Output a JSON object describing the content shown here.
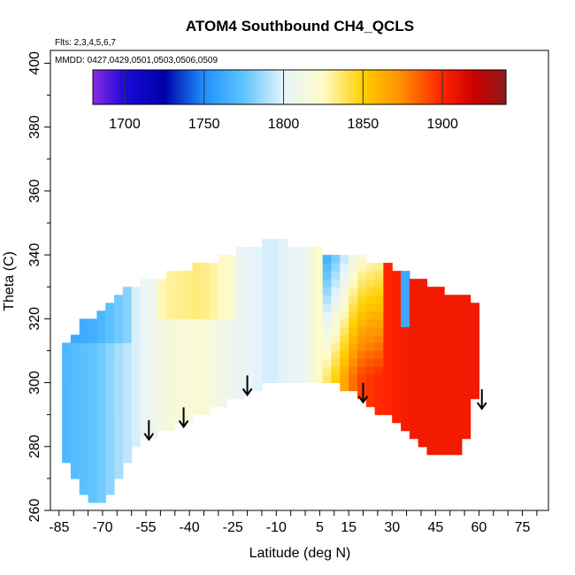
{
  "chart_data": {
    "type": "heatmap",
    "title": "ATOM4 Southbound CH4_QCLS",
    "annotations": [
      "Flts: 2,3,4,5,6,7",
      "MMDD: 0427,0429,0501,0503,0506,0509"
    ],
    "xlabel": "Latitude (deg N)",
    "ylabel": "Theta (C)",
    "xlim": [
      -88,
      84
    ],
    "ylim": [
      260,
      404
    ],
    "x_ticks": [
      -85,
      -70,
      -55,
      -40,
      -25,
      -10,
      5,
      15,
      30,
      45,
      60,
      75
    ],
    "x_tick_labels": [
      "-85",
      "-70",
      "-55",
      "-40",
      "-25",
      "-10",
      "5",
      "15",
      "30",
      "45",
      "60",
      "75"
    ],
    "y_ticks": [
      260,
      280,
      300,
      320,
      340,
      360,
      380,
      400
    ],
    "y_tick_labels": [
      "260",
      "280",
      "300",
      "320",
      "340",
      "360",
      "380",
      "400"
    ],
    "colorbar": {
      "range": [
        1680,
        1940
      ],
      "ticks": [
        1700,
        1750,
        1800,
        1850,
        1900
      ],
      "tick_labels": [
        "1700",
        "1750",
        "1800",
        "1850",
        "1900"
      ],
      "stops": [
        {
          "value": 1680,
          "color": "#8a2be2"
        },
        {
          "value": 1700,
          "color": "#1a0ad8"
        },
        {
          "value": 1725,
          "color": "#0000a8"
        },
        {
          "value": 1750,
          "color": "#1e90ff"
        },
        {
          "value": 1775,
          "color": "#5fc4ff"
        },
        {
          "value": 1800,
          "color": "#e6f4fb"
        },
        {
          "value": 1825,
          "color": "#fffbc8"
        },
        {
          "value": 1850,
          "color": "#ffd000"
        },
        {
          "value": 1875,
          "color": "#ff8a00"
        },
        {
          "value": 1900,
          "color": "#ff2200"
        },
        {
          "value": 1920,
          "color": "#cc0000"
        },
        {
          "value": 1940,
          "color": "#8b1a1a"
        }
      ]
    },
    "coverage": {
      "latitude": [
        -84,
        -78,
        -72,
        -66,
        -60,
        -54,
        -48,
        -42,
        -36,
        -30,
        -24,
        -18,
        -12,
        -6,
        0,
        6,
        12,
        18,
        24,
        30,
        36,
        42,
        48,
        54,
        60
      ],
      "theta_min": [
        278,
        266,
        260,
        266,
        278,
        283,
        285,
        287,
        290,
        292,
        295,
        298,
        300,
        299,
        299,
        300,
        299,
        296,
        292,
        288,
        284,
        278,
        278,
        278,
        300
      ],
      "theta_max": [
        310,
        318,
        322,
        326,
        330,
        332,
        334,
        335,
        337,
        339,
        341,
        343,
        344,
        344,
        342,
        341,
        339,
        339,
        338,
        336,
        334,
        331,
        329,
        327,
        324
      ]
    },
    "ch4_profile": {
      "latitude": [
        -84,
        -72,
        -60,
        -48,
        -36,
        -24,
        -12,
        0,
        6,
        12,
        18,
        24,
        30,
        36,
        42,
        48,
        54,
        60
      ],
      "value": [
        1768,
        1776,
        1795,
        1815,
        1820,
        1805,
        1796,
        1805,
        1830,
        1856,
        1890,
        1898,
        1900,
        1905,
        1905,
        1905,
        1905,
        1905
      ]
    },
    "arrow_latitudes": [
      -54,
      -42,
      -20,
      20,
      61
    ]
  }
}
